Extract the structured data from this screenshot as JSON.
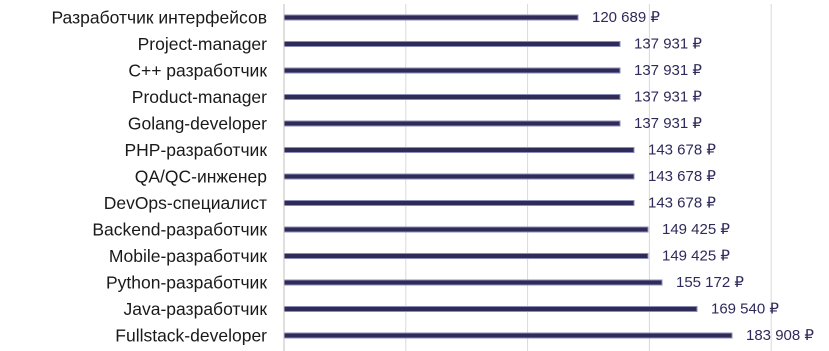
{
  "chart_data": {
    "type": "bar",
    "orientation": "horizontal",
    "categories": [
      "Разработчик интерфейсов",
      "Project-manager",
      "C++ разработчик",
      "Product-manager",
      "Golang-developer",
      "PHP-разработчик",
      "QA/QC-инженер",
      "DevOps-специалист",
      "Backend-разработчик",
      "Mobile-разработчик",
      "Python-разработчик",
      "Java-разработчик",
      "Fullstack-developer"
    ],
    "values": [
      120689,
      137931,
      137931,
      137931,
      137931,
      143678,
      143678,
      143678,
      149425,
      149425,
      155172,
      169540,
      183908
    ],
    "value_labels": [
      "120 689 ₽",
      "137 931 ₽",
      "137 931 ₽",
      "137 931 ₽",
      "137 931 ₽",
      "143 678 ₽",
      "143 678 ₽",
      "143 678 ₽",
      "149 425 ₽",
      "149 425 ₽",
      "155 172 ₽",
      "169 540 ₽",
      "183 908 ₽"
    ],
    "xlim": [
      0,
      200000
    ],
    "grid": true,
    "bar_color": "#2e2b59",
    "bar_edge_color": "#8c8cb8",
    "title": "",
    "xlabel": "",
    "ylabel": ""
  }
}
